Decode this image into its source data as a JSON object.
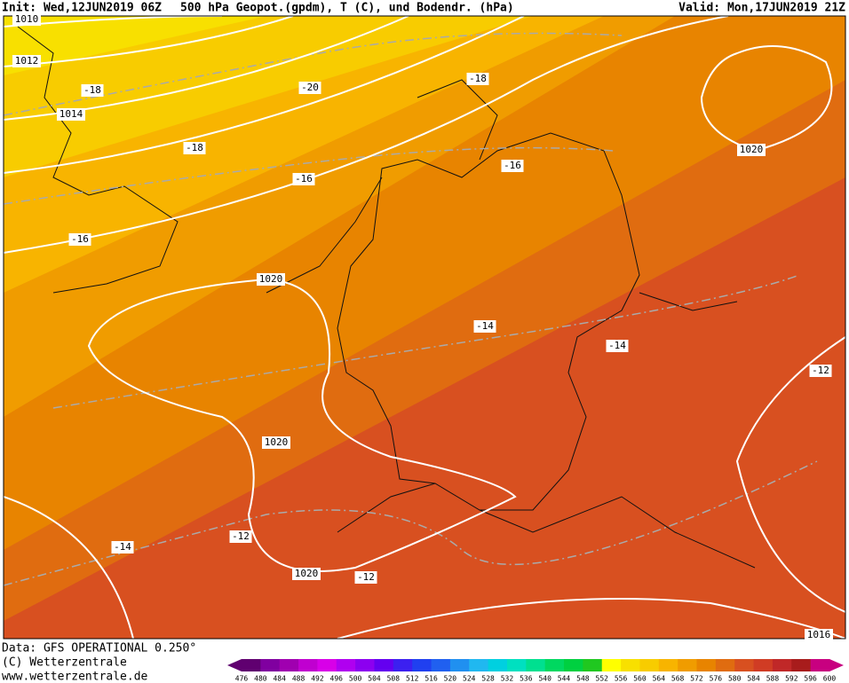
{
  "header": {
    "init": "Init: Wed,12JUN2019 06Z",
    "title": "500 hPa Geopot.(gpdm), T (C), und Bodendr. (hPa)",
    "valid": "Valid: Mon,17JUN2019 21Z"
  },
  "map": {
    "contour_labels": [
      "1010",
      "1012",
      "1014",
      "-18",
      "-20",
      "-18",
      "-18",
      "-16",
      "-16",
      "-16",
      "1020",
      "1020",
      "-14",
      "-14",
      "-12",
      "1020",
      "-12",
      "-14",
      "1020",
      "-12",
      "1016"
    ]
  },
  "footer": {
    "data": "Data: GFS OPERATIONAL 0.250°",
    "copyright": "(C) Wetterzentrale",
    "url": "www.wetterzentrale.de"
  },
  "colorbar": {
    "levels": [
      476,
      480,
      484,
      488,
      492,
      496,
      500,
      504,
      508,
      512,
      516,
      520,
      524,
      528,
      532,
      536,
      540,
      544,
      548,
      552,
      556,
      560,
      564,
      568,
      572,
      576,
      580,
      584,
      588,
      592,
      596,
      600
    ],
    "colors": [
      "#600070",
      "#8000a0",
      "#a000b0",
      "#c000d0",
      "#d800e8",
      "#b000f0",
      "#8c00f0",
      "#6400f0",
      "#3c20f0",
      "#2040f0",
      "#2060f0",
      "#2090f0",
      "#20b8f0",
      "#00d0e0",
      "#00e0c0",
      "#00e090",
      "#00d860",
      "#00d040",
      "#20c820",
      "#ffff00",
      "#f8e000",
      "#f8cc00",
      "#f8b400",
      "#f09c00",
      "#e88400",
      "#e06c10",
      "#d85020",
      "#d03c24",
      "#c02828",
      "#a81c1c",
      "#c80080"
    ]
  }
}
